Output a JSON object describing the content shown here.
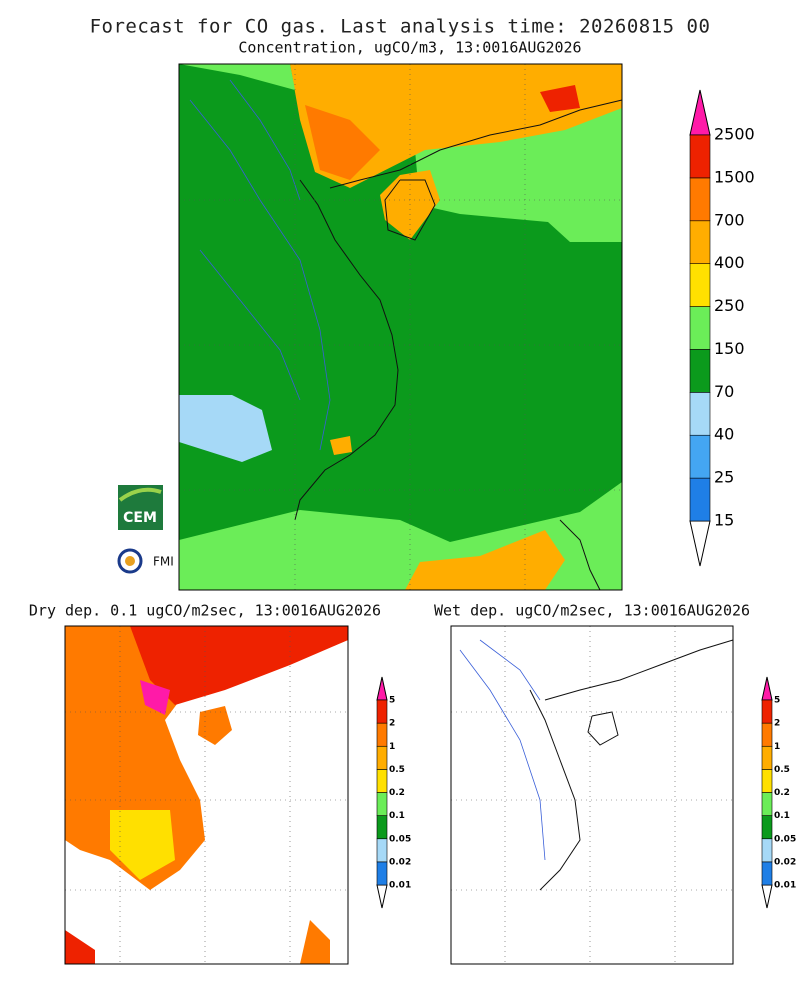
{
  "title": "Forecast for CO gas. Last analysis time: 20260815 00",
  "main": {
    "subtitle": "Concentration, ugCO/m3, 13:0016AUG2026",
    "legend": {
      "levels": [
        "15",
        "25",
        "40",
        "70",
        "150",
        "250",
        "400",
        "700",
        "1500",
        "2500"
      ],
      "colors": [
        "#1f7fe6",
        "#44a6f2",
        "#a6d9f7",
        "#0b9a1c",
        "#6bed58",
        "#ffe000",
        "#ffad00",
        "#ff7a00",
        "#ee2200"
      ],
      "over_color": "#ff1aa8"
    }
  },
  "dry": {
    "subtitle": "Dry dep. 0.1 ugCO/m2sec, 13:0016AUG2026",
    "legend": {
      "levels": [
        "0.01",
        "0.02",
        "0.05",
        "0.1",
        "0.2",
        "0.5",
        "1",
        "2",
        "5"
      ],
      "colors": [
        "#1f7fe6",
        "#a6d9f7",
        "#0b9a1c",
        "#6bed58",
        "#ffe000",
        "#ffad00",
        "#ff7a00",
        "#ee2200"
      ],
      "over_color": "#ff1aa8"
    }
  },
  "wet": {
    "subtitle": "Wet dep. ugCO/m2sec, 13:0016AUG2026",
    "legend": {
      "levels": [
        "0.01",
        "0.02",
        "0.05",
        "0.1",
        "0.2",
        "0.5",
        "1",
        "2",
        "5"
      ],
      "colors": [
        "#1f7fe6",
        "#a6d9f7",
        "#0b9a1c",
        "#6bed58",
        "#ffe000",
        "#ffad00",
        "#ff7a00",
        "#ee2200"
      ],
      "over_color": "#ff1aa8"
    }
  },
  "logos": [
    "CEM",
    "FMI"
  ]
}
